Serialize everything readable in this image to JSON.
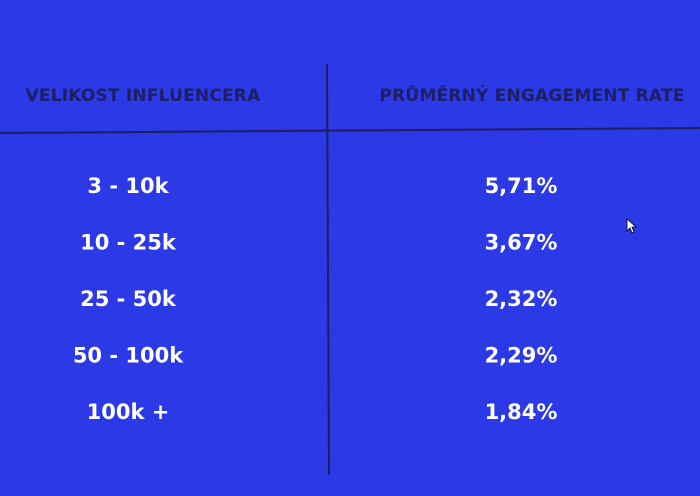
{
  "table": {
    "header": [
      "VELIKOST INFLUENCERA",
      "PRŮMĚRNÝ ENGAGEMENT RATE"
    ],
    "rows": [
      [
        "3 - 10k",
        "5,71%"
      ],
      [
        "10 - 25k",
        "3,67%"
      ],
      [
        "25 - 50k",
        "2,32%"
      ],
      [
        "50 - 100k",
        "2,29%"
      ],
      [
        "100k +",
        "1,84%"
      ]
    ]
  }
}
